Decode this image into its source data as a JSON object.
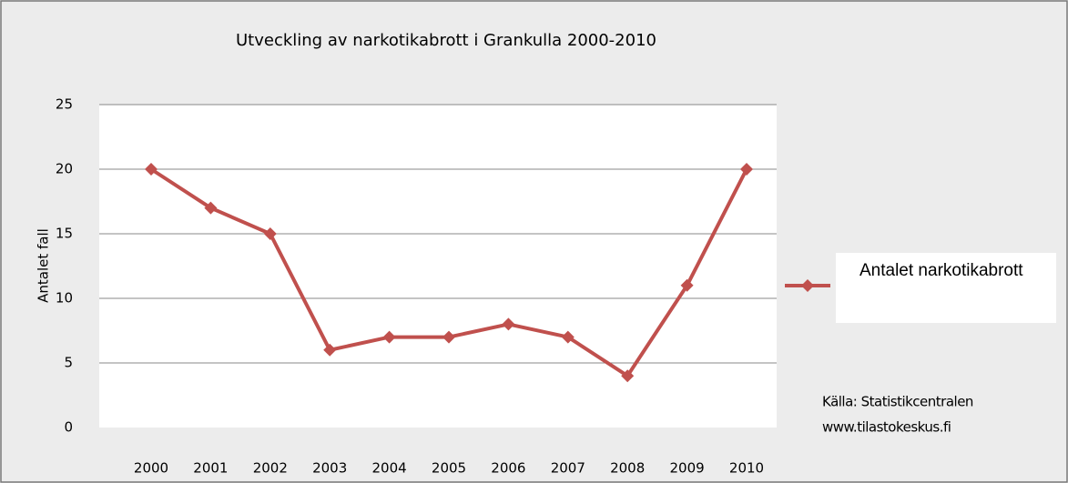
{
  "chart_data": {
    "type": "line",
    "title": "Utveckling av narkotikabrott i Grankulla  2000-2010",
    "y_label": "Antalet fall",
    "categories": [
      "2000",
      "2001",
      "2002",
      "2003",
      "2004",
      "2005",
      "2006",
      "2007",
      "2008",
      "2009",
      "2010"
    ],
    "series": [
      {
        "name": "Antalet narkotikabrott",
        "color": "#c0504d",
        "values": [
          20,
          17,
          15,
          6,
          7,
          7,
          8,
          7,
          4,
          11,
          20
        ]
      }
    ],
    "ylim": [
      0,
      25
    ],
    "yticks": [
      0,
      5,
      10,
      15,
      20,
      25
    ],
    "grid": true,
    "legend": "right",
    "annotations": [
      "Källa: Statistikcentralen",
      "www.tilastokeskus.fi"
    ]
  }
}
